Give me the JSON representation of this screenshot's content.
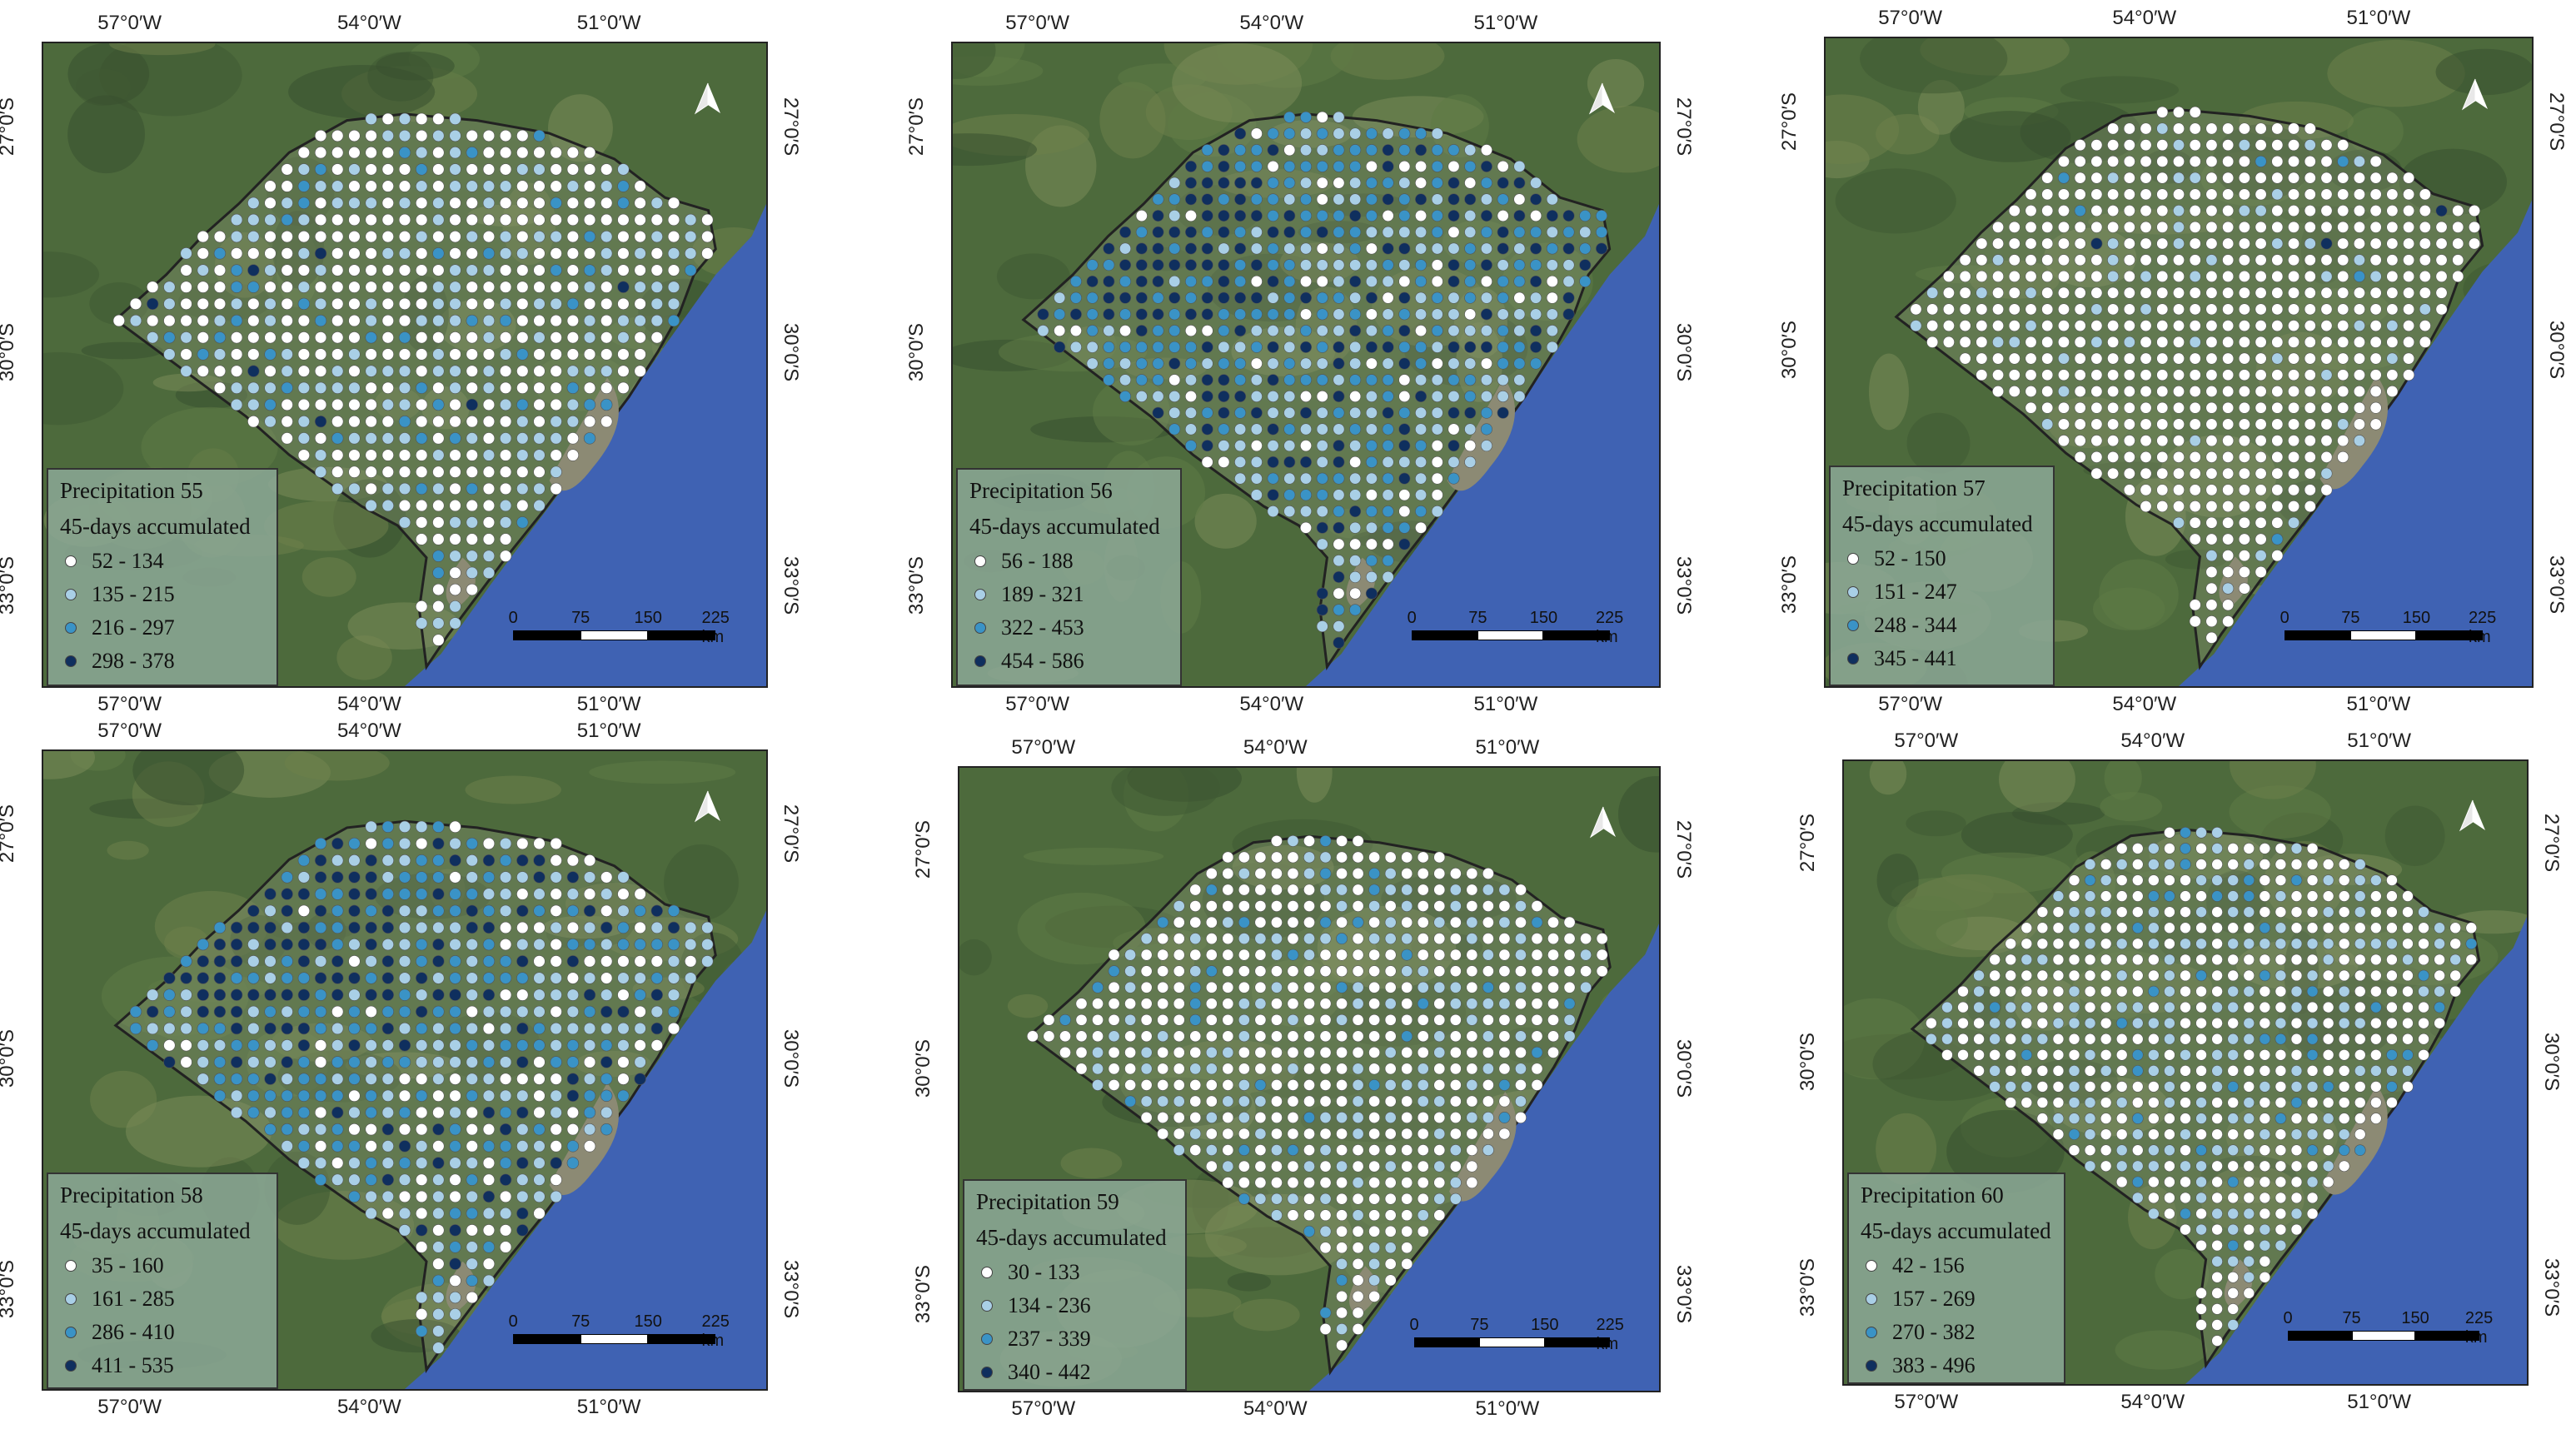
{
  "colors": {
    "class1": "#ffffff",
    "class2": "#a9cfe6",
    "class3": "#3a93c6",
    "class4": "#0f2f5e"
  },
  "axis_labels": {
    "lon": [
      "57°0′W",
      "54°0′W",
      "51°0′W"
    ],
    "lat": [
      "27°0′S",
      "30°0′S",
      "33°0′S"
    ]
  },
  "scale_bar": {
    "ticks": [
      "0",
      "75",
      "150",
      "225 km"
    ]
  },
  "north_arrow": "north-arrow-icon",
  "legend_subtitle": "45-days accumulated",
  "panels": [
    {
      "title": "Precipitation 55",
      "classes": [
        "52 - 134",
        "135 - 215",
        "216 - 297",
        "298 - 378"
      ]
    },
    {
      "title": "Precipitation 56",
      "classes": [
        "56 - 188",
        "189 - 321",
        "322 - 453",
        "454 - 586"
      ]
    },
    {
      "title": "Precipitation 57",
      "classes": [
        "52 - 150",
        "151 - 247",
        "248 - 344",
        "345 - 441"
      ]
    },
    {
      "title": "Precipitation 58",
      "classes": [
        "35 - 160",
        "161 - 285",
        "286 - 410",
        "411 - 535"
      ]
    },
    {
      "title": "Precipitation 59",
      "classes": [
        "30 - 133",
        "134 - 236",
        "237 - 339",
        "340 - 442"
      ]
    },
    {
      "title": "Precipitation 60",
      "classes": [
        "42 - 156",
        "157 - 269",
        "270 - 382",
        "383 - 496"
      ]
    }
  ]
}
